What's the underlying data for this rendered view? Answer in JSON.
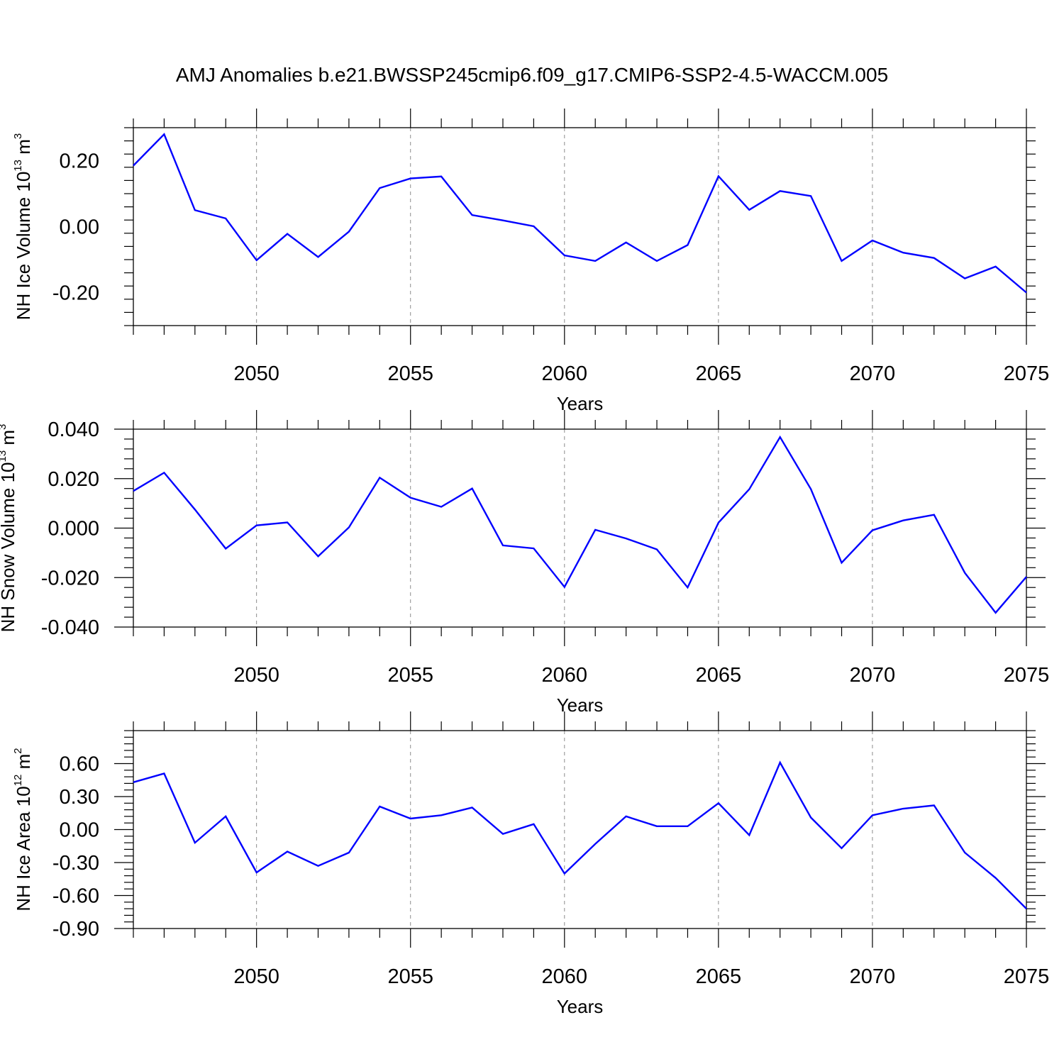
{
  "title": "AMJ Anomalies b.e21.BWSSP245cmip6.f09_g17.CMIP6-SSP2-4.5-WACCM.005",
  "colors": {
    "series": "#0000ff",
    "axes": "#000000",
    "grid": "#7f7f7f"
  },
  "chart_data": [
    {
      "type": "line",
      "ylabel": {
        "text": "NH Ice Volume 10",
        "exponent": "13",
        "unit": " m",
        "unit_exponent": "3"
      },
      "xlabel": "Years",
      "xlim": [
        2046,
        2075
      ],
      "ylim": [
        -0.3,
        0.3
      ],
      "xticks": [
        2050,
        2055,
        2060,
        2065,
        2070,
        2075
      ],
      "yticks": [
        {
          "value": -0.2,
          "label": "-0.20"
        },
        {
          "value": 0.0,
          "label": "0.00"
        },
        {
          "value": 0.2,
          "label": "0.20"
        }
      ],
      "grid": "dashed vertical lines at major x ticks",
      "series": [
        {
          "x": [
            2046,
            2047,
            2048,
            2049,
            2050,
            2051,
            2052,
            2053,
            2054,
            2055,
            2056,
            2057,
            2058,
            2059,
            2060,
            2061,
            2062,
            2063,
            2064,
            2065,
            2066,
            2067,
            2068,
            2069,
            2070,
            2071,
            2072,
            2073,
            2074,
            2075
          ],
          "values": [
            0.185,
            0.28,
            0.05,
            0.025,
            -0.102,
            -0.022,
            -0.092,
            -0.015,
            0.117,
            0.146,
            0.152,
            0.035,
            0.019,
            0.001,
            -0.087,
            -0.104,
            -0.048,
            -0.104,
            -0.056,
            0.153,
            0.051,
            0.108,
            0.093,
            -0.104,
            -0.042,
            -0.079,
            -0.095,
            -0.157,
            -0.121,
            -0.2
          ]
        }
      ]
    },
    {
      "type": "line",
      "ylabel": {
        "text": "NH Snow Volume 10",
        "exponent": "13",
        "unit": " m",
        "unit_exponent": "3"
      },
      "xlabel": "Years",
      "xlim": [
        2046,
        2075
      ],
      "ylim": [
        -0.04,
        0.04
      ],
      "xticks": [
        2050,
        2055,
        2060,
        2065,
        2070,
        2075
      ],
      "yticks": [
        {
          "value": -0.04,
          "label": "-0.040"
        },
        {
          "value": -0.02,
          "label": "-0.020"
        },
        {
          "value": 0.0,
          "label": "0.000"
        },
        {
          "value": 0.02,
          "label": "0.020"
        },
        {
          "value": 0.04,
          "label": "0.040"
        }
      ],
      "grid": "dashed vertical lines at major x ticks",
      "series": [
        {
          "x": [
            2046,
            2047,
            2048,
            2049,
            2050,
            2051,
            2052,
            2053,
            2054,
            2055,
            2056,
            2057,
            2058,
            2059,
            2060,
            2061,
            2062,
            2063,
            2064,
            2065,
            2066,
            2067,
            2068,
            2069,
            2070,
            2071,
            2072,
            2073,
            2074,
            2075
          ],
          "values": [
            0.015,
            0.0224,
            0.0075,
            -0.0083,
            0.0011,
            0.0023,
            -0.0114,
            0.0003,
            0.0204,
            0.0123,
            0.0086,
            0.016,
            -0.007,
            -0.0082,
            -0.0238,
            -0.0007,
            -0.0042,
            -0.0086,
            -0.024,
            0.0022,
            0.0157,
            0.0368,
            0.0158,
            -0.014,
            -0.0009,
            0.0031,
            0.0054,
            -0.0181,
            -0.0342,
            -0.0197
          ]
        }
      ]
    },
    {
      "type": "line",
      "ylabel": {
        "text": "NH Ice Area 10",
        "exponent": "12",
        "unit": " m",
        "unit_exponent": "2"
      },
      "xlabel": "Years",
      "xlim": [
        2046,
        2075
      ],
      "ylim": [
        -0.9,
        0.9
      ],
      "xticks": [
        2050,
        2055,
        2060,
        2065,
        2070,
        2075
      ],
      "yticks": [
        {
          "value": -0.9,
          "label": "-0.90"
        },
        {
          "value": -0.6,
          "label": "-0.60"
        },
        {
          "value": -0.3,
          "label": "-0.30"
        },
        {
          "value": 0.0,
          "label": "0.00"
        },
        {
          "value": 0.3,
          "label": "0.30"
        },
        {
          "value": 0.6,
          "label": "0.60"
        }
      ],
      "grid": "dashed vertical lines at major x ticks",
      "series": [
        {
          "x": [
            2046,
            2047,
            2048,
            2049,
            2050,
            2051,
            2052,
            2053,
            2054,
            2055,
            2056,
            2057,
            2058,
            2059,
            2060,
            2061,
            2062,
            2063,
            2064,
            2065,
            2066,
            2067,
            2068,
            2069,
            2070,
            2071,
            2072,
            2073,
            2074,
            2075
          ],
          "values": [
            0.43,
            0.51,
            -0.12,
            0.12,
            -0.39,
            -0.2,
            -0.33,
            -0.21,
            0.21,
            0.1,
            0.13,
            0.2,
            -0.04,
            0.05,
            -0.4,
            -0.13,
            0.12,
            0.03,
            0.03,
            0.24,
            -0.05,
            0.61,
            0.11,
            -0.17,
            0.13,
            0.19,
            0.22,
            -0.21,
            -0.44,
            -0.72
          ]
        }
      ]
    }
  ]
}
